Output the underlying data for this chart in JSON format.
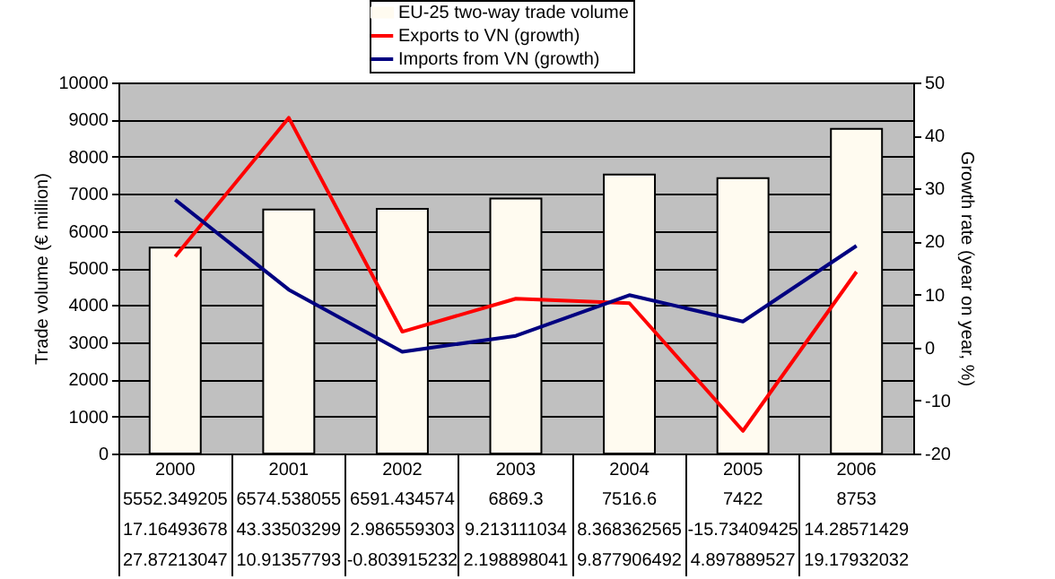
{
  "chart_data": {
    "type": "bar",
    "categories": [
      "2000",
      "2001",
      "2002",
      "2003",
      "2004",
      "2005",
      "2006"
    ],
    "series": [
      {
        "name": "EU-25 two-way trade volume",
        "color": "#fffbf0",
        "values": [
          5552.349205,
          6574.538055,
          6591.434574,
          6869.3,
          7516.6,
          7422,
          8753
        ]
      },
      {
        "name": "Exports to VN (growth)",
        "type": "line",
        "axis": "y2",
        "color": "#ff0000",
        "values": [
          17.16493678,
          43.33503299,
          2.986559303,
          9.213111034,
          8.368362565,
          -15.73409425,
          14.28571429
        ]
      },
      {
        "name": "Imports from VN (growth)",
        "type": "line",
        "axis": "y2",
        "color": "#000080",
        "values": [
          27.87213047,
          10.91357793,
          -0.803915232,
          2.198898041,
          9.877906492,
          4.897889527,
          19.17932032
        ]
      }
    ],
    "ylabel": "Trade volume (€ million)",
    "y2label": "Growth rate (year on year, %)",
    "ylim": [
      0,
      10000
    ],
    "yticks": [
      0,
      1000,
      2000,
      3000,
      4000,
      5000,
      6000,
      7000,
      8000,
      9000,
      10000
    ],
    "y2lim": [
      -20,
      50
    ],
    "y2ticks": [
      -20,
      -10,
      0,
      10,
      20,
      30,
      40,
      50
    ],
    "grid": "y",
    "legend": "top",
    "data_labels": true
  }
}
